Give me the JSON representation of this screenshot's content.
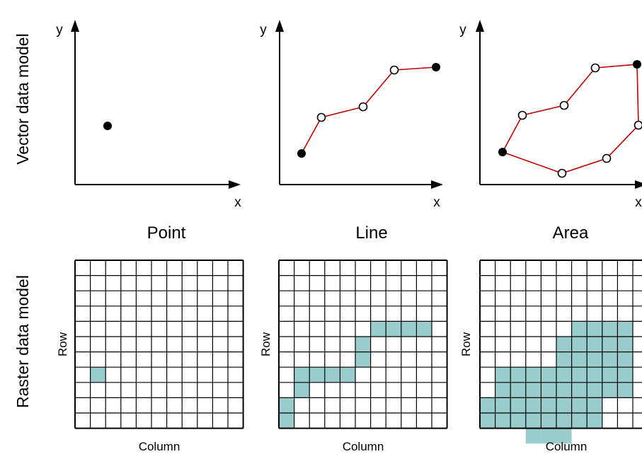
{
  "row_titles": {
    "vector": "Vector data model",
    "raster": "Raster data model"
  },
  "panel_titles": [
    "Point",
    "Line",
    "Area"
  ],
  "axes": {
    "x_label": "x",
    "y_label": "y"
  },
  "raster_axes": {
    "row_label": "Row",
    "column_label": "Column"
  },
  "colors": {
    "polyline": "#c00000",
    "filled_cell": "#99cccc",
    "grid_line": "#000000",
    "vertex_fill_open": "#ffffff",
    "vertex_fill_closed": "#000000"
  },
  "raster": {
    "columns": 11,
    "rows": 11,
    "point_cells": [
      [
        2,
        7
      ]
    ],
    "line_cells": [
      [
        7,
        4
      ],
      [
        8,
        4
      ],
      [
        9,
        4
      ],
      [
        10,
        4
      ],
      [
        6,
        5
      ],
      [
        6,
        6
      ],
      [
        2,
        7
      ],
      [
        3,
        7
      ],
      [
        4,
        7
      ],
      [
        5,
        7
      ],
      [
        2,
        8
      ],
      [
        1,
        9
      ],
      [
        1,
        10
      ]
    ],
    "area_cells": [
      [
        7,
        4
      ],
      [
        8,
        4
      ],
      [
        9,
        4
      ],
      [
        10,
        4
      ],
      [
        6,
        5
      ],
      [
        7,
        5
      ],
      [
        8,
        5
      ],
      [
        9,
        5
      ],
      [
        10,
        5
      ],
      [
        6,
        6
      ],
      [
        7,
        6
      ],
      [
        8,
        6
      ],
      [
        9,
        6
      ],
      [
        10,
        6
      ],
      [
        2,
        7
      ],
      [
        3,
        7
      ],
      [
        4,
        7
      ],
      [
        5,
        7
      ],
      [
        6,
        7
      ],
      [
        7,
        7
      ],
      [
        8,
        7
      ],
      [
        9,
        7
      ],
      [
        10,
        7
      ],
      [
        2,
        8
      ],
      [
        3,
        8
      ],
      [
        4,
        8
      ],
      [
        5,
        8
      ],
      [
        6,
        8
      ],
      [
        7,
        8
      ],
      [
        8,
        8
      ],
      [
        9,
        8
      ],
      [
        10,
        8
      ],
      [
        1,
        9
      ],
      [
        2,
        9
      ],
      [
        3,
        9
      ],
      [
        4,
        9
      ],
      [
        5,
        9
      ],
      [
        6,
        9
      ],
      [
        7,
        9
      ],
      [
        8,
        9
      ],
      [
        1,
        10
      ],
      [
        2,
        10
      ],
      [
        3,
        10
      ],
      [
        4,
        10
      ],
      [
        5,
        10
      ],
      [
        6,
        10
      ],
      [
        7,
        10
      ],
      [
        8,
        10
      ],
      [
        4,
        11
      ],
      [
        5,
        11
      ],
      [
        6,
        11
      ]
    ]
  }
}
